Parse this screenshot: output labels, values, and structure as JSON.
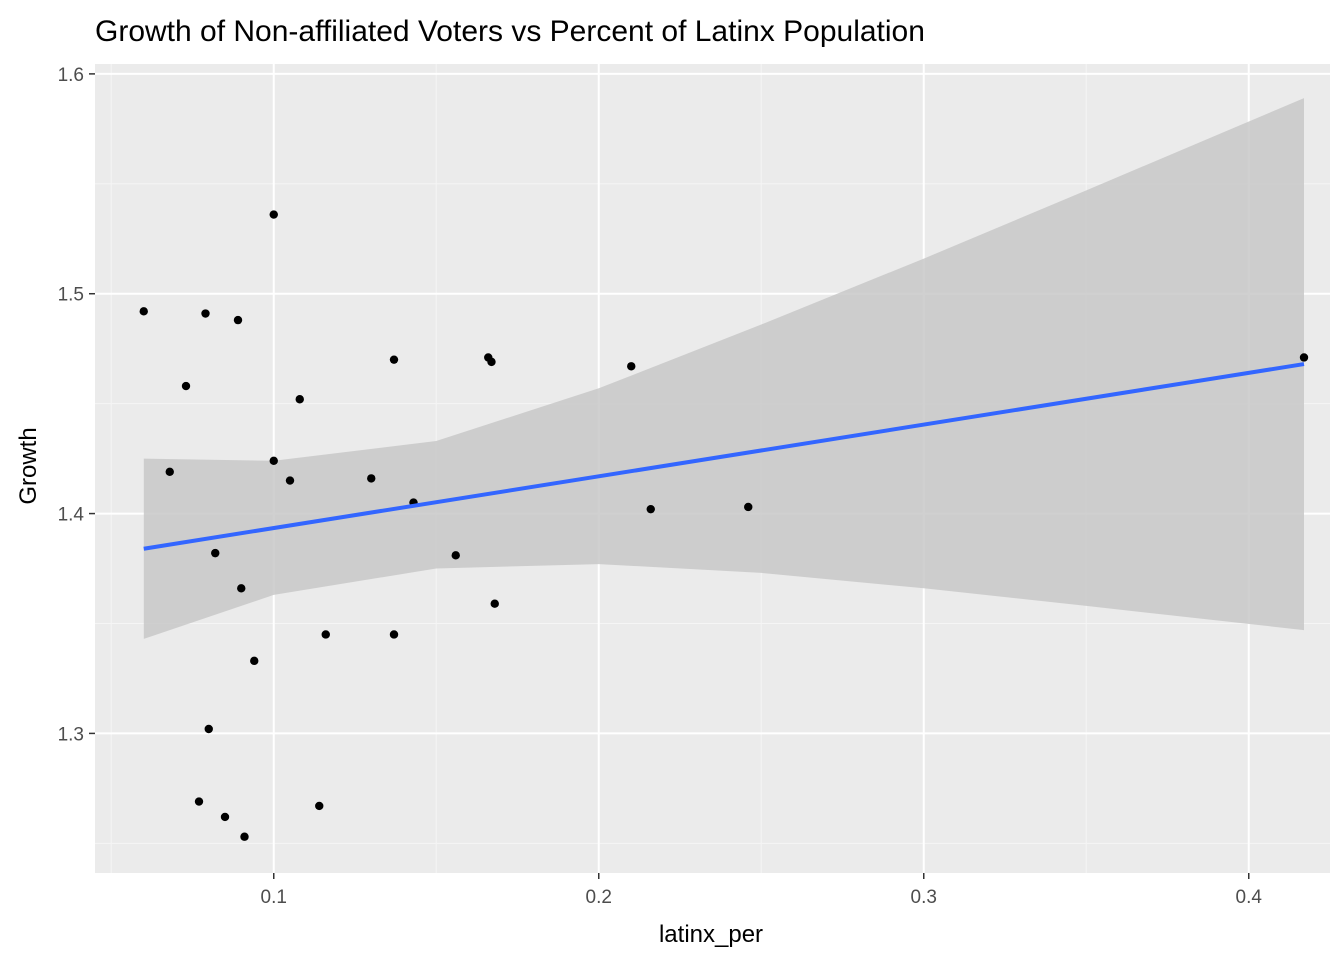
{
  "chart_data": {
    "type": "scatter",
    "title": "Growth of Non-affiliated Voters vs Percent of Latinx Population",
    "xlabel": "latinx_per",
    "ylabel": "Growth",
    "xlim": [
      0.045,
      0.425
    ],
    "ylim": [
      1.2365,
      1.6045
    ],
    "x_ticks": [
      0.1,
      0.2,
      0.3,
      0.4
    ],
    "x_tick_labels": [
      "0.1",
      "0.2",
      "0.3",
      "0.4"
    ],
    "y_ticks": [
      1.3,
      1.4,
      1.5,
      1.6
    ],
    "y_tick_labels": [
      "1.3",
      "1.4",
      "1.5",
      "1.6"
    ],
    "grid": true,
    "legend": "none",
    "points": [
      {
        "x": 0.06,
        "y": 1.492
      },
      {
        "x": 0.068,
        "y": 1.419
      },
      {
        "x": 0.073,
        "y": 1.458
      },
      {
        "x": 0.077,
        "y": 1.269
      },
      {
        "x": 0.079,
        "y": 1.491
      },
      {
        "x": 0.08,
        "y": 1.302
      },
      {
        "x": 0.082,
        "y": 1.382
      },
      {
        "x": 0.085,
        "y": 1.262
      },
      {
        "x": 0.089,
        "y": 1.488
      },
      {
        "x": 0.09,
        "y": 1.366
      },
      {
        "x": 0.091,
        "y": 1.253
      },
      {
        "x": 0.094,
        "y": 1.333
      },
      {
        "x": 0.1,
        "y": 1.536
      },
      {
        "x": 0.1,
        "y": 1.424
      },
      {
        "x": 0.105,
        "y": 1.415
      },
      {
        "x": 0.108,
        "y": 1.452
      },
      {
        "x": 0.114,
        "y": 1.267
      },
      {
        "x": 0.116,
        "y": 1.345
      },
      {
        "x": 0.13,
        "y": 1.416
      },
      {
        "x": 0.137,
        "y": 1.47
      },
      {
        "x": 0.137,
        "y": 1.345
      },
      {
        "x": 0.143,
        "y": 1.405
      },
      {
        "x": 0.156,
        "y": 1.381
      },
      {
        "x": 0.166,
        "y": 1.471
      },
      {
        "x": 0.167,
        "y": 1.469
      },
      {
        "x": 0.168,
        "y": 1.359
      },
      {
        "x": 0.21,
        "y": 1.467
      },
      {
        "x": 0.216,
        "y": 1.402
      },
      {
        "x": 0.246,
        "y": 1.403
      },
      {
        "x": 0.417,
        "y": 1.471
      }
    ],
    "smooth": {
      "method": "linear",
      "x": [
        0.06,
        0.417
      ],
      "fit": [
        1.384,
        1.468
      ],
      "band_x": [
        0.06,
        0.1,
        0.15,
        0.2,
        0.25,
        0.3,
        0.35,
        0.417
      ],
      "band_lower": [
        1.343,
        1.363,
        1.375,
        1.377,
        1.373,
        1.366,
        1.358,
        1.347
      ],
      "band_upper": [
        1.425,
        1.424,
        1.433,
        1.457,
        1.486,
        1.516,
        1.547,
        1.589
      ]
    },
    "colors": {
      "panel": "#ebebeb",
      "grid_major": "#ffffff",
      "grid_minor": "#f5f5f5",
      "point": "#000000",
      "line": "#3366ff",
      "band": "#c8c8c8"
    }
  }
}
